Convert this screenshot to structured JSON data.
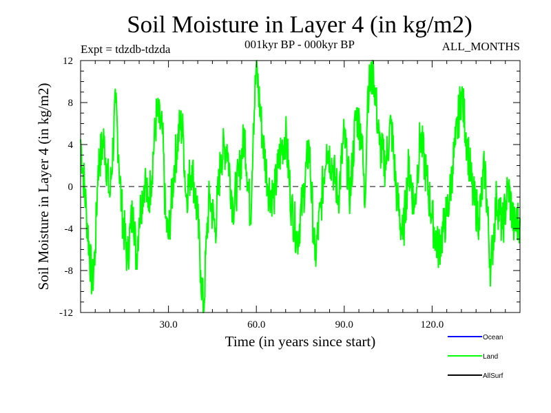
{
  "chart_data": {
    "type": "line",
    "title": "Soil Moisture in Layer 4 (in kg/m2)",
    "subtitle": "001kyr BP - 000kyr BP",
    "left_note": "Expt = tdzdb-tdzda",
    "right_note": "ALL_MONTHS",
    "xlabel": "Time (in years since start)",
    "ylabel": "Soil Moisture in Layer 4 (in kg/m2)",
    "xlim": [
      0,
      150
    ],
    "ylim": [
      -12,
      12
    ],
    "x_ticks": [
      30,
      60,
      90,
      120
    ],
    "x_tick_labels": [
      "30.0",
      "60.0",
      "90.0",
      "120.0"
    ],
    "y_ticks": [
      -12,
      -8,
      -4,
      0,
      4,
      8,
      12
    ],
    "y_tick_labels": [
      "-12",
      "-8",
      "-4",
      "0",
      "4",
      "8",
      "12"
    ],
    "reference_line": {
      "y": 0,
      "style": "dashed"
    },
    "legend": [
      {
        "name": "Ocean",
        "color": "#0000ff"
      },
      {
        "name": "Land",
        "color": "#00ff00"
      },
      {
        "name": "AllSurf",
        "color": "#000000"
      }
    ],
    "legend_position": "bottom-right",
    "series": [
      {
        "name": "Land",
        "color": "#00ff00",
        "x": [
          0,
          2,
          4,
          5,
          6,
          8,
          10,
          12,
          13,
          14,
          16,
          17,
          18,
          19,
          20,
          22,
          23,
          24,
          26,
          28,
          29,
          30,
          32,
          34,
          35,
          36,
          38,
          40,
          41,
          42,
          43,
          44,
          46,
          48,
          50,
          52,
          54,
          56,
          58,
          59,
          60,
          62,
          64,
          66,
          68,
          70,
          72,
          74,
          76,
          78,
          80,
          82,
          84,
          86,
          88,
          90,
          92,
          94,
          96,
          97,
          98,
          100,
          102,
          104,
          106,
          108,
          110,
          112,
          114,
          116,
          118,
          120,
          122,
          124,
          126,
          127,
          128,
          130,
          132,
          134,
          136,
          138,
          140,
          142,
          144,
          146,
          148,
          150
        ],
        "values": [
          4.5,
          -2.5,
          -9.5,
          -6,
          2,
          4.5,
          -1,
          8,
          3,
          -2,
          -7,
          -4,
          -2,
          -7,
          -3,
          1,
          -2,
          0.5,
          7,
          5,
          -3,
          -5,
          2,
          6,
          5,
          -1,
          2,
          -3,
          -8,
          -12,
          -5,
          -1,
          -4,
          3,
          4,
          -2,
          1,
          5,
          -3,
          6,
          11.5,
          5,
          0,
          -1,
          3,
          5,
          -2,
          -5,
          -1,
          4,
          -7,
          -2,
          4,
          2,
          -1,
          5,
          -1,
          7,
          5,
          -2,
          9,
          11,
          4,
          2,
          6,
          -1,
          -5,
          2,
          -2,
          5,
          1,
          -3,
          -6,
          -4,
          -1,
          2,
          4,
          9,
          4,
          -1,
          -3,
          2,
          -8,
          -1,
          -4,
          0,
          -4,
          -3
        ]
      }
    ]
  }
}
